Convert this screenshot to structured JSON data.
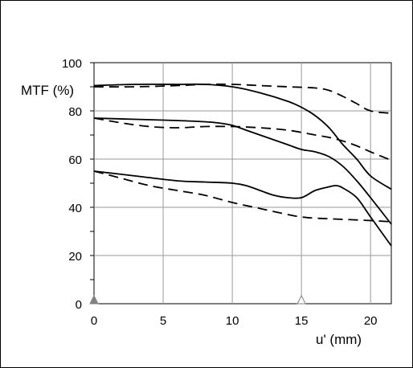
{
  "chart_data": {
    "type": "line",
    "title": "",
    "ylabel": "MTF (%)",
    "xlabel": "u' (mm)",
    "xlim": [
      0,
      21.5
    ],
    "ylim": [
      0,
      100
    ],
    "xticks": [
      0,
      5,
      10,
      15,
      20
    ],
    "yticks": [
      0,
      20,
      40,
      60,
      80,
      100
    ],
    "grid": true,
    "legend": "none",
    "markers": [
      {
        "name": "on-axis",
        "x": 0,
        "style": "filled-triangle",
        "color": "#808080"
      },
      {
        "name": "zone-mark",
        "x": 15,
        "style": "open-triangle",
        "color": "#808080"
      }
    ],
    "series": [
      {
        "style": "solid",
        "points": [
          [
            0,
            90.5
          ],
          [
            3,
            91
          ],
          [
            6,
            91
          ],
          [
            8,
            91
          ],
          [
            10,
            90
          ],
          [
            12,
            87.5
          ],
          [
            14,
            84
          ],
          [
            15,
            81.5
          ],
          [
            16,
            78
          ],
          [
            17,
            73
          ],
          [
            18,
            66
          ],
          [
            19,
            60
          ],
          [
            20,
            53
          ],
          [
            21.5,
            47.5
          ]
        ]
      },
      {
        "style": "dashed",
        "points": [
          [
            0,
            90
          ],
          [
            3,
            90
          ],
          [
            6,
            90.5
          ],
          [
            8,
            91
          ],
          [
            10,
            91
          ],
          [
            12,
            90.5
          ],
          [
            14,
            90
          ],
          [
            16,
            89.5
          ],
          [
            17,
            88.5
          ],
          [
            18,
            86
          ],
          [
            19,
            83
          ],
          [
            20,
            80
          ],
          [
            21.5,
            79
          ]
        ]
      },
      {
        "style": "solid",
        "points": [
          [
            0,
            77
          ],
          [
            3,
            76.5
          ],
          [
            6,
            76
          ],
          [
            8,
            75.5
          ],
          [
            9,
            75
          ],
          [
            10,
            74
          ],
          [
            11,
            72
          ],
          [
            12,
            70
          ],
          [
            13,
            68
          ],
          [
            14,
            66
          ],
          [
            15,
            64
          ],
          [
            16,
            63
          ],
          [
            17,
            61
          ],
          [
            18,
            57
          ],
          [
            19,
            51
          ],
          [
            20,
            44
          ],
          [
            21.5,
            33
          ]
        ]
      },
      {
        "style": "dashed",
        "points": [
          [
            0,
            77
          ],
          [
            2,
            75
          ],
          [
            4,
            73.5
          ],
          [
            6,
            73
          ],
          [
            8,
            73.5
          ],
          [
            10,
            73.5
          ],
          [
            12,
            73
          ],
          [
            14,
            72
          ],
          [
            16,
            70
          ],
          [
            17,
            69
          ],
          [
            18,
            67.5
          ],
          [
            19,
            65.5
          ],
          [
            20,
            63
          ],
          [
            21.5,
            59.5
          ]
        ]
      },
      {
        "style": "solid",
        "points": [
          [
            0,
            55
          ],
          [
            3,
            53
          ],
          [
            6,
            51
          ],
          [
            8,
            50.5
          ],
          [
            10,
            50
          ],
          [
            11,
            49
          ],
          [
            12,
            47
          ],
          [
            13,
            45
          ],
          [
            14,
            44
          ],
          [
            15,
            44
          ],
          [
            16,
            47
          ],
          [
            17,
            48.5
          ],
          [
            17.5,
            49
          ],
          [
            18,
            48
          ],
          [
            19,
            44
          ],
          [
            20,
            36
          ],
          [
            21.5,
            24
          ]
        ]
      },
      {
        "style": "dashed",
        "points": [
          [
            0,
            55
          ],
          [
            2,
            52
          ],
          [
            4,
            49
          ],
          [
            6,
            47
          ],
          [
            8,
            45
          ],
          [
            10,
            42
          ],
          [
            12,
            39.5
          ],
          [
            14,
            37
          ],
          [
            15,
            36
          ],
          [
            16,
            35.5
          ],
          [
            18,
            35
          ],
          [
            20,
            34.5
          ],
          [
            21.5,
            34
          ]
        ]
      }
    ]
  }
}
